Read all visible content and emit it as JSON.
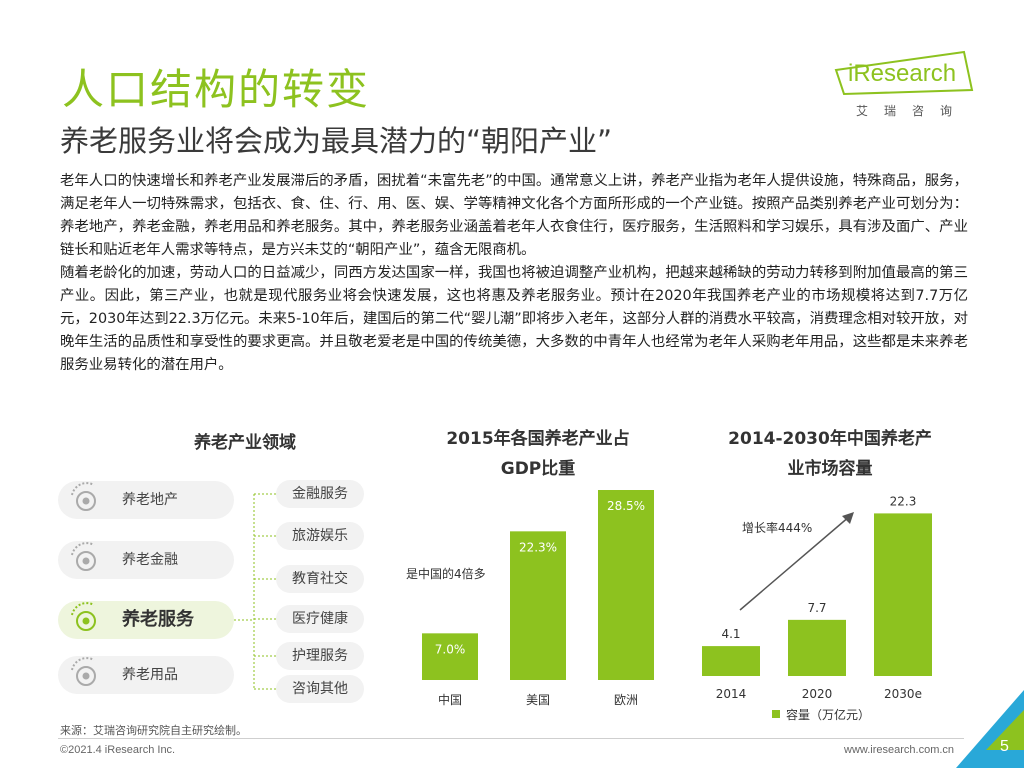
{
  "title": "人口结构的转变",
  "subtitle": "养老服务业将会成为最具潜力的“朝阳产业”",
  "logo": {
    "word": "iResearch",
    "sub": "艾瑞咨询"
  },
  "body": [
    "老年人口的快速增长和养老产业发展滞后的矛盾，困扰着“未富先老”的中国。通常意义上讲，养老产业指为老年人提供设施，特殊商品，服务，满足老年人一切特殊需求，包括衣、食、住、行、用、医、娱、学等精神文化各个方面所形成的一个产业链。按照产品类别养老产业可划分为：养老地产，养老金融，养老用品和养老服务。其中，养老服务业涵盖着老年人衣食住行，医疗服务，生活照料和学习娱乐，具有涉及面广、产业链长和贴近老年人需求等特点，是方兴未艾的“朝阳产业”，蕴含无限商机。",
    "随着老龄化的加速，劳动人口的日益减少，同西方发达国家一样，我国也将被迫调整产业机构，把越来越稀缺的劳动力转移到附加值最高的第三产业。因此，第三产业，也就是现代服务业将会快速发展，这也将惠及养老服务业。预计在2020年我国养老产业的市场规模将达到7.7万亿元，2030年达到22.3万亿元。未来5-10年后，建国后的第二代“婴儿潮”即将步入老年，这部分人群的消费水平较高，消费理念相对较开放，对晚年生活的品质性和享受性的要求更高。并且敬老爱老是中国的传统美德，大多数的中青年人也经常为老年人采购老年用品，这些都是未来养老服务业易转化的潜在用户。"
  ],
  "domain": {
    "heading": "养老产业领域",
    "categories": [
      "养老地产",
      "养老金融",
      "养老服务",
      "养老用品"
    ],
    "active": "养老服务",
    "services": [
      "金融服务",
      "旅游娱乐",
      "教育社交",
      "医疗健康",
      "护理服务",
      "咨询其他"
    ]
  },
  "colors": {
    "accent": "#8dc21f",
    "dark": "#3a3a3a",
    "bar_label": "#ffffff"
  },
  "chart_data": [
    {
      "type": "bar",
      "title": "2015年各国养老产业占GDP比重",
      "title_line1": "2015年各国养老产业占",
      "title_line2": "GDP比重",
      "categories": [
        "中国",
        "美国",
        "欧洲"
      ],
      "values": [
        7.0,
        22.3,
        28.5
      ],
      "value_labels": [
        "7.0%",
        "22.3%",
        "28.5%"
      ],
      "annotation": "是中国的4倍多",
      "ylim": [
        0,
        30
      ],
      "grid": false
    },
    {
      "type": "bar",
      "title": "2014-2030年中国养老产业市场容量",
      "title_line1": "2014-2030年中国养老产",
      "title_line2": "业市场容量",
      "categories": [
        "2014",
        "2020",
        "2030e"
      ],
      "series": [
        {
          "name": "容量（万亿元）",
          "values": [
            4.1,
            7.7,
            22.3
          ]
        }
      ],
      "value_labels": [
        "4.1",
        "7.7",
        "22.3"
      ],
      "annotation": "增长率444%",
      "ylim": [
        0,
        24
      ],
      "legend": "bottom",
      "grid": false
    }
  ],
  "source": "来源：艾瑞咨询研究院自主研究绘制。",
  "copyright": "©2021.4 iResearch Inc.",
  "url": "www.iresearch.com.cn",
  "page_number": "5"
}
